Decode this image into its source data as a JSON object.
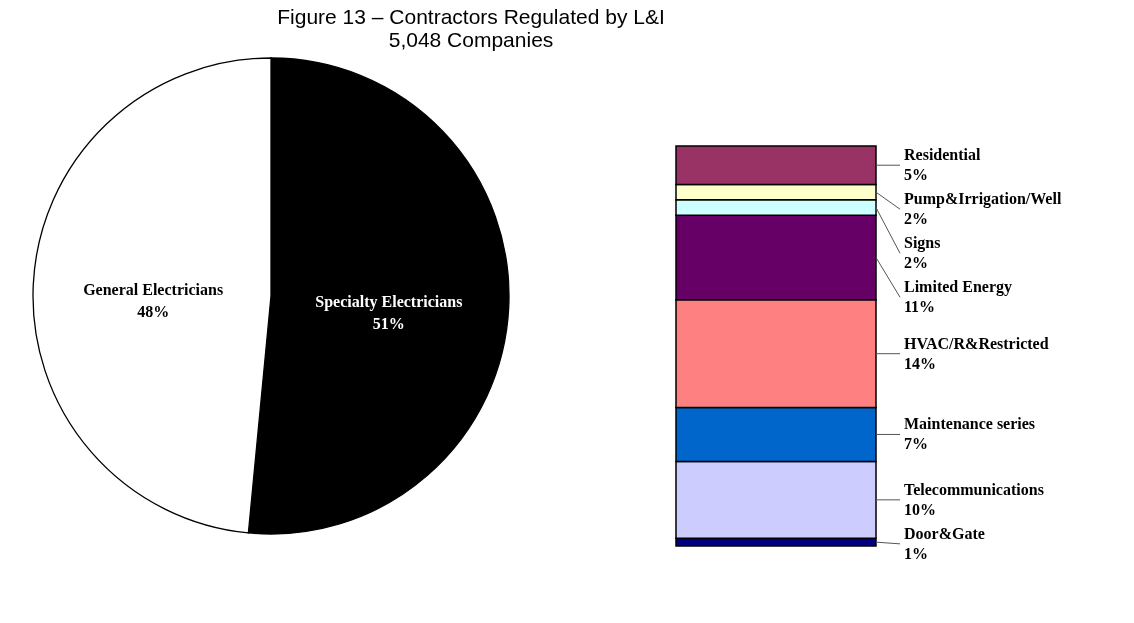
{
  "chart_data": [
    {
      "type": "pie",
      "title": "Figure 13 – Contractors Regulated by L&I",
      "subtitle": "5,048 Companies",
      "categories": [
        "Specialty Electricians",
        "General Electricians"
      ],
      "values": [
        51,
        48
      ],
      "colors": [
        "#000000",
        "#ffffff"
      ],
      "value_labels": [
        "51%",
        "48%"
      ]
    },
    {
      "type": "bar",
      "stacked": true,
      "categories": [
        null
      ],
      "series": [
        {
          "name": "Door&Gate",
          "color": "#000080",
          "values": [
            1
          ],
          "value_labels": [
            "1%"
          ]
        },
        {
          "name": "Telecommunications",
          "color": "#ccccff",
          "values": [
            10
          ],
          "value_labels": [
            "10%"
          ]
        },
        {
          "name": "Maintenance series",
          "color": "#0066cc",
          "values": [
            7
          ],
          "value_labels": [
            "7%"
          ]
        },
        {
          "name": "HVAC/R&Restricted",
          "color": "#ff8080",
          "values": [
            14
          ],
          "value_labels": [
            "14%"
          ]
        },
        {
          "name": "Limited Energy",
          "color": "#660066",
          "values": [
            11
          ],
          "value_labels": [
            "11%"
          ]
        },
        {
          "name": "Signs",
          "color": "#ccffff",
          "values": [
            2
          ],
          "value_labels": [
            "2%"
          ]
        },
        {
          "name": "Pump&Irrigation/Well",
          "color": "#ffffcc",
          "values": [
            2
          ],
          "value_labels": [
            "2%"
          ]
        },
        {
          "name": "Residential",
          "color": "#993366",
          "values": [
            5
          ],
          "value_labels": [
            "5%"
          ]
        }
      ]
    }
  ]
}
